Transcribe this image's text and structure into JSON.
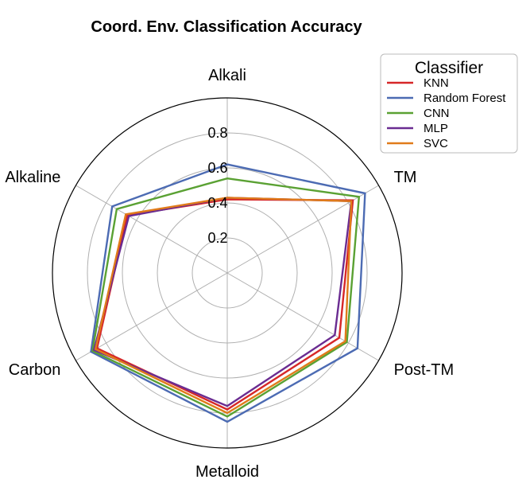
{
  "chart_data": {
    "type": "radar",
    "title": "Coord. Env. Classification Accuracy",
    "categories": [
      "Alkali",
      "TM",
      "Post-TM",
      "Metalloid",
      "Carbon",
      "Alkaline"
    ],
    "radial_ticks": [
      0.2,
      0.4,
      0.6,
      0.8
    ],
    "rlim": [
      0,
      1.0
    ],
    "grid": true,
    "legend": {
      "title": "Classifier",
      "placement": "top-right"
    },
    "series": [
      {
        "name": "KNN",
        "color": "#d62728",
        "values": [
          0.42,
          0.83,
          0.74,
          0.78,
          0.86,
          0.66
        ]
      },
      {
        "name": "Random Forest",
        "color": "#4c6bb3",
        "values": [
          0.62,
          0.91,
          0.86,
          0.85,
          0.9,
          0.76
        ]
      },
      {
        "name": "CNN",
        "color": "#5aa133",
        "values": [
          0.54,
          0.87,
          0.79,
          0.82,
          0.89,
          0.73
        ]
      },
      {
        "name": "MLP",
        "color": "#6a2c91",
        "values": [
          0.43,
          0.82,
          0.71,
          0.76,
          0.88,
          0.65
        ]
      },
      {
        "name": "SVC",
        "color": "#e07b1a",
        "values": [
          0.43,
          0.82,
          0.78,
          0.8,
          0.87,
          0.67
        ]
      }
    ]
  }
}
